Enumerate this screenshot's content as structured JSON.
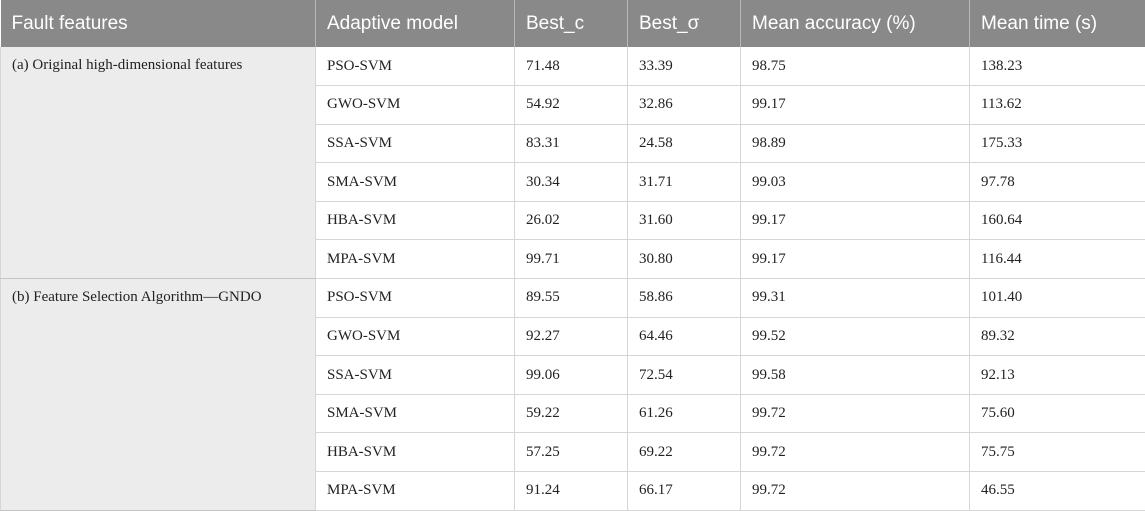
{
  "table": {
    "headers": [
      "Fault features",
      "Adaptive model",
      "Best_c",
      "Best_σ",
      "Mean accuracy (%)",
      "Mean time (s)"
    ],
    "groups": [
      {
        "label": "(a) Original high-dimensional features",
        "rows": [
          [
            "PSO-SVM",
            "71.48",
            "33.39",
            "98.75",
            "138.23"
          ],
          [
            "GWO-SVM",
            "54.92",
            "32.86",
            "99.17",
            "113.62"
          ],
          [
            "SSA-SVM",
            "83.31",
            "24.58",
            "98.89",
            "175.33"
          ],
          [
            "SMA-SVM",
            "30.34",
            "31.71",
            "99.03",
            "97.78"
          ],
          [
            "HBA-SVM",
            "26.02",
            "31.60",
            "99.17",
            "160.64"
          ],
          [
            "MPA-SVM",
            "99.71",
            "30.80",
            "99.17",
            "116.44"
          ]
        ]
      },
      {
        "label": "(b) Feature Selection Algorithm—GNDO",
        "rows": [
          [
            "PSO-SVM",
            "89.55",
            "58.86",
            "99.31",
            "101.40"
          ],
          [
            "GWO-SVM",
            "92.27",
            "64.46",
            "99.52",
            "89.32"
          ],
          [
            "SSA-SVM",
            "99.06",
            "72.54",
            "99.58",
            "92.13"
          ],
          [
            "SMA-SVM",
            "59.22",
            "61.26",
            "99.72",
            "75.60"
          ],
          [
            "HBA-SVM",
            "57.25",
            "69.22",
            "99.72",
            "75.75"
          ],
          [
            "MPA-SVM",
            "91.24",
            "66.17",
            "99.72",
            "46.55"
          ]
        ]
      }
    ]
  }
}
